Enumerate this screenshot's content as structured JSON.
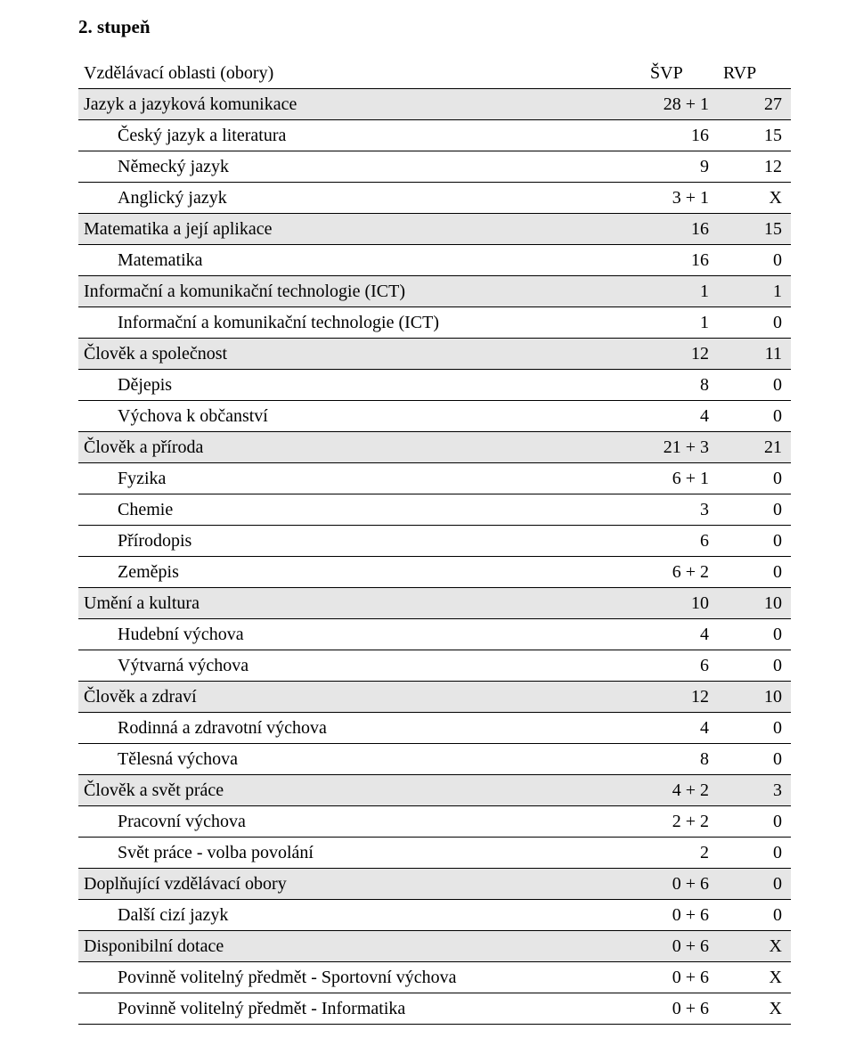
{
  "title": "2. stupeň",
  "header": {
    "label": "Vzdělávací oblasti (obory)",
    "col1": "ŠVP",
    "col2": "RVP"
  },
  "shaded_bg": "#e6e6e6",
  "rows": [
    {
      "label": "Jazyk a jazyková komunikace",
      "svp": "28 + 1",
      "rvp": "27",
      "shaded": true,
      "indent": 0
    },
    {
      "label": "Český jazyk a literatura",
      "svp": "16",
      "rvp": "15",
      "shaded": false,
      "indent": 1
    },
    {
      "label": "Německý jazyk",
      "svp": "9",
      "rvp": "12",
      "shaded": false,
      "indent": 1
    },
    {
      "label": "Anglický jazyk",
      "svp": "3 + 1",
      "rvp": "X",
      "shaded": false,
      "indent": 1
    },
    {
      "label": "Matematika a její aplikace",
      "svp": "16",
      "rvp": "15",
      "shaded": true,
      "indent": 0
    },
    {
      "label": "Matematika",
      "svp": "16",
      "rvp": "0",
      "shaded": false,
      "indent": 1
    },
    {
      "label": "Informační a komunikační technologie (ICT)",
      "svp": "1",
      "rvp": "1",
      "shaded": true,
      "indent": 0
    },
    {
      "label": "Informační a komunikační technologie (ICT)",
      "svp": "1",
      "rvp": "0",
      "shaded": false,
      "indent": 1
    },
    {
      "label": "Člověk a společnost",
      "svp": "12",
      "rvp": "11",
      "shaded": true,
      "indent": 0
    },
    {
      "label": "Dějepis",
      "svp": "8",
      "rvp": "0",
      "shaded": false,
      "indent": 1
    },
    {
      "label": "Výchova k občanství",
      "svp": "4",
      "rvp": "0",
      "shaded": false,
      "indent": 1
    },
    {
      "label": "Člověk a příroda",
      "svp": "21 + 3",
      "rvp": "21",
      "shaded": true,
      "indent": 0
    },
    {
      "label": "Fyzika",
      "svp": "6 + 1",
      "rvp": "0",
      "shaded": false,
      "indent": 1
    },
    {
      "label": "Chemie",
      "svp": "3",
      "rvp": "0",
      "shaded": false,
      "indent": 1
    },
    {
      "label": "Přírodopis",
      "svp": "6",
      "rvp": "0",
      "shaded": false,
      "indent": 1
    },
    {
      "label": "Zeměpis",
      "svp": "6 + 2",
      "rvp": "0",
      "shaded": false,
      "indent": 1
    },
    {
      "label": "Umění a kultura",
      "svp": "10",
      "rvp": "10",
      "shaded": true,
      "indent": 0
    },
    {
      "label": "Hudební výchova",
      "svp": "4",
      "rvp": "0",
      "shaded": false,
      "indent": 1
    },
    {
      "label": "Výtvarná výchova",
      "svp": "6",
      "rvp": "0",
      "shaded": false,
      "indent": 1
    },
    {
      "label": "Člověk a zdraví",
      "svp": "12",
      "rvp": "10",
      "shaded": true,
      "indent": 0
    },
    {
      "label": "Rodinná a zdravotní výchova",
      "svp": "4",
      "rvp": "0",
      "shaded": false,
      "indent": 1
    },
    {
      "label": "Tělesná výchova",
      "svp": "8",
      "rvp": "0",
      "shaded": false,
      "indent": 1
    },
    {
      "label": "Člověk a svět práce",
      "svp": "4 + 2",
      "rvp": "3",
      "shaded": true,
      "indent": 0
    },
    {
      "label": "Pracovní výchova",
      "svp": "2 + 2",
      "rvp": "0",
      "shaded": false,
      "indent": 1
    },
    {
      "label": "Svět práce - volba povolání",
      "svp": "2",
      "rvp": "0",
      "shaded": false,
      "indent": 1
    },
    {
      "label": "Doplňující vzdělávací obory",
      "svp": "0 + 6",
      "rvp": "0",
      "shaded": true,
      "indent": 0
    },
    {
      "label": "Další cizí jazyk",
      "svp": "0 + 6",
      "rvp": "0",
      "shaded": false,
      "indent": 1
    },
    {
      "label": "Disponibilní dotace",
      "svp": "0 + 6",
      "rvp": "X",
      "shaded": true,
      "indent": 0
    },
    {
      "label": "Povinně volitelný předmět - Sportovní výchova",
      "svp": "0 + 6",
      "rvp": "X",
      "shaded": false,
      "indent": 1
    },
    {
      "label": "Povinně volitelný předmět - Informatika",
      "svp": "0 + 6",
      "rvp": "X",
      "shaded": false,
      "indent": 1
    }
  ]
}
